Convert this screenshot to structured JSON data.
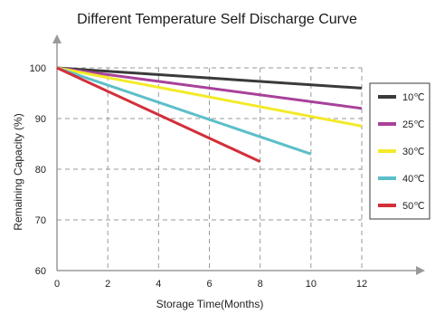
{
  "chart_data": {
    "type": "line",
    "title": "Different Temperature Self Discharge Curve",
    "xlabel": "Storage Time(Months)",
    "ylabel": "Remaining Capacity (%)",
    "xlim": [
      0,
      12
    ],
    "ylim": [
      60,
      100
    ],
    "x_ticks": [
      0,
      2,
      4,
      6,
      8,
      10,
      12
    ],
    "y_ticks": [
      60,
      70,
      80,
      90,
      100
    ],
    "grid": true,
    "legend_position": "right",
    "series": [
      {
        "name": "10℃",
        "color": "#3a3a3a",
        "x": [
          0,
          12
        ],
        "y": [
          100,
          96
        ]
      },
      {
        "name": "25℃",
        "color": "#a8419a",
        "x": [
          0,
          12
        ],
        "y": [
          100,
          92
        ]
      },
      {
        "name": "30℃",
        "color": "#f3ea2a",
        "x": [
          0,
          12
        ],
        "y": [
          100,
          88.5
        ]
      },
      {
        "name": "40℃",
        "color": "#5bbfc9",
        "x": [
          0,
          10
        ],
        "y": [
          100,
          83
        ]
      },
      {
        "name": "50℃",
        "color": "#d32f3a",
        "x": [
          0,
          8
        ],
        "y": [
          100,
          81.5
        ]
      }
    ]
  }
}
